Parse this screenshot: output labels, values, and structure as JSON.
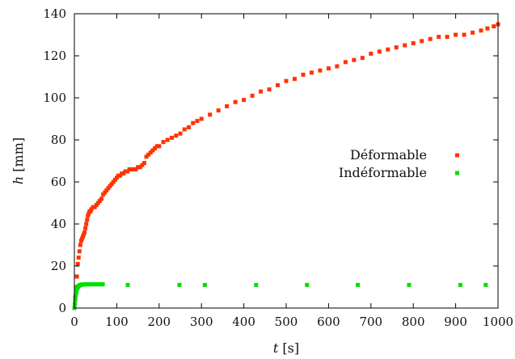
{
  "chart_data": {
    "type": "scatter",
    "title": "",
    "xlabel": {
      "symbol": "t",
      "unit": "[s]"
    },
    "ylabel": {
      "symbol": "h",
      "unit": "[mm]"
    },
    "xlim": [
      0,
      1000
    ],
    "ylim": [
      0,
      140
    ],
    "x_ticks": [
      "0",
      "100",
      "200",
      "300",
      "400",
      "500",
      "600",
      "700",
      "800",
      "900",
      "1000"
    ],
    "y_ticks": [
      "0",
      "20",
      "40",
      "60",
      "80",
      "100",
      "120",
      "140"
    ],
    "grid": false,
    "legend_position": "right",
    "series": [
      {
        "name": "Déformable",
        "color": "#ff3300",
        "marker": "square",
        "points": [
          [
            0,
            0
          ],
          [
            2,
            5
          ],
          [
            4,
            10
          ],
          [
            6,
            15
          ],
          [
            8,
            21
          ],
          [
            10,
            24
          ],
          [
            12,
            27
          ],
          [
            14,
            30
          ],
          [
            16,
            32
          ],
          [
            18,
            33
          ],
          [
            20,
            34
          ],
          [
            22,
            35
          ],
          [
            24,
            36
          ],
          [
            26,
            38
          ],
          [
            28,
            40
          ],
          [
            30,
            42
          ],
          [
            32,
            44
          ],
          [
            34,
            45
          ],
          [
            36,
            46
          ],
          [
            38,
            46
          ],
          [
            40,
            47
          ],
          [
            44,
            48
          ],
          [
            48,
            48
          ],
          [
            52,
            49
          ],
          [
            56,
            50
          ],
          [
            60,
            51
          ],
          [
            64,
            52
          ],
          [
            68,
            54
          ],
          [
            72,
            55
          ],
          [
            76,
            56
          ],
          [
            80,
            57
          ],
          [
            84,
            58
          ],
          [
            88,
            59
          ],
          [
            92,
            60
          ],
          [
            96,
            61
          ],
          [
            100,
            62
          ],
          [
            104,
            63
          ],
          [
            108,
            63
          ],
          [
            112,
            64
          ],
          [
            116,
            64
          ],
          [
            120,
            65
          ],
          [
            125,
            65
          ],
          [
            130,
            66
          ],
          [
            135,
            66
          ],
          [
            140,
            66
          ],
          [
            145,
            66
          ],
          [
            150,
            67
          ],
          [
            155,
            67
          ],
          [
            160,
            68
          ],
          [
            165,
            69
          ],
          [
            170,
            72
          ],
          [
            175,
            73
          ],
          [
            180,
            74
          ],
          [
            185,
            75
          ],
          [
            190,
            76
          ],
          [
            195,
            77
          ],
          [
            200,
            77
          ],
          [
            210,
            79
          ],
          [
            220,
            80
          ],
          [
            230,
            81
          ],
          [
            240,
            82
          ],
          [
            250,
            83
          ],
          [
            260,
            85
          ],
          [
            270,
            86
          ],
          [
            280,
            88
          ],
          [
            290,
            89
          ],
          [
            300,
            90
          ],
          [
            320,
            92
          ],
          [
            340,
            94
          ],
          [
            360,
            96
          ],
          [
            380,
            98
          ],
          [
            400,
            99
          ],
          [
            420,
            101
          ],
          [
            440,
            103
          ],
          [
            460,
            104
          ],
          [
            480,
            106
          ],
          [
            500,
            108
          ],
          [
            520,
            109
          ],
          [
            540,
            111
          ],
          [
            560,
            112
          ],
          [
            580,
            113
          ],
          [
            600,
            114
          ],
          [
            620,
            115
          ],
          [
            640,
            117
          ],
          [
            660,
            118
          ],
          [
            680,
            119
          ],
          [
            700,
            121
          ],
          [
            720,
            122
          ],
          [
            740,
            123
          ],
          [
            760,
            124
          ],
          [
            780,
            125
          ],
          [
            800,
            126
          ],
          [
            820,
            127
          ],
          [
            840,
            128
          ],
          [
            860,
            129
          ],
          [
            880,
            129
          ],
          [
            900,
            130
          ],
          [
            920,
            130
          ],
          [
            940,
            131
          ],
          [
            960,
            132
          ],
          [
            975,
            133
          ],
          [
            990,
            134
          ],
          [
            1000,
            135
          ]
        ]
      },
      {
        "name": "Indéformable",
        "color": "#00e000",
        "marker": "square",
        "points": [
          [
            0,
            0
          ],
          [
            1,
            2
          ],
          [
            2,
            4
          ],
          [
            3,
            6
          ],
          [
            4,
            7
          ],
          [
            5,
            8
          ],
          [
            6,
            9
          ],
          [
            7,
            9.5
          ],
          [
            8,
            10
          ],
          [
            9,
            10.2
          ],
          [
            10,
            10.5
          ],
          [
            12,
            10.8
          ],
          [
            14,
            11
          ],
          [
            16,
            11
          ],
          [
            18,
            11.2
          ],
          [
            20,
            11.2
          ],
          [
            22,
            11.2
          ],
          [
            25,
            11.3
          ],
          [
            28,
            11.3
          ],
          [
            31,
            11.3
          ],
          [
            34,
            11.3
          ],
          [
            37,
            11.3
          ],
          [
            40,
            11.3
          ],
          [
            43,
            11.3
          ],
          [
            46,
            11.3
          ],
          [
            49,
            11.3
          ],
          [
            52,
            11.3
          ],
          [
            55,
            11.3
          ],
          [
            58,
            11.3
          ],
          [
            61,
            11.3
          ],
          [
            64,
            11.3
          ],
          [
            67,
            11.3
          ],
          [
            126,
            11
          ],
          [
            248,
            11
          ],
          [
            308,
            11
          ],
          [
            429,
            11
          ],
          [
            549,
            11
          ],
          [
            669,
            11
          ],
          [
            790,
            11
          ],
          [
            911,
            11
          ],
          [
            971,
            11
          ]
        ]
      }
    ]
  }
}
